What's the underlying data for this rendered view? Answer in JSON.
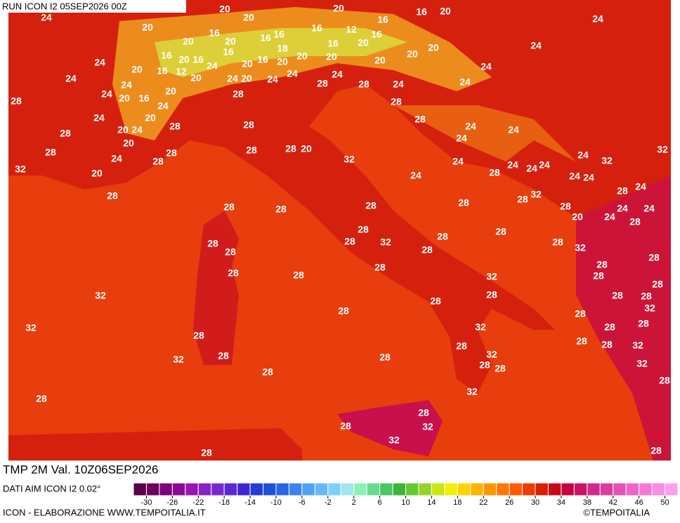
{
  "header": {
    "run": "RUN ICON I2 05SEP2026 00Z"
  },
  "map": {
    "labels": [
      24,
      20,
      20,
      20,
      16,
      16,
      20,
      24,
      20,
      16,
      16,
      16,
      16,
      12,
      16,
      20,
      20,
      16,
      20,
      20,
      20,
      24,
      16,
      20,
      16,
      16,
      18,
      24,
      20,
      16,
      12,
      24,
      20,
      16,
      20,
      20,
      20,
      20,
      24,
      24,
      24,
      20,
      24,
      20,
      24,
      24,
      24,
      28,
      28,
      24,
      24,
      24,
      20,
      16,
      20,
      28,
      28,
      24,
      28,
      24,
      20,
      28,
      28,
      28,
      20,
      24,
      24,
      24,
      28,
      20,
      24,
      32,
      28,
      28,
      28,
      20,
      28,
      24,
      28,
      32,
      24,
      24,
      32,
      32,
      20,
      24,
      24,
      24,
      28,
      24,
      24,
      24,
      24,
      28,
      28,
      32,
      28,
      28,
      28,
      28,
      28,
      28,
      24,
      24,
      20,
      24,
      28,
      28,
      28,
      28,
      28,
      28,
      28,
      32,
      32,
      28,
      28,
      28,
      28,
      28,
      28,
      28,
      32,
      28,
      28,
      32,
      28,
      28,
      28,
      28,
      32,
      28,
      28,
      28,
      32,
      32,
      28,
      28,
      28,
      28,
      28,
      32,
      32,
      28,
      28,
      32,
      28,
      28,
      32,
      28,
      28,
      28,
      32,
      28,
      28,
      32,
      32,
      28,
      28
    ]
  },
  "footer": {
    "field": "TMP 2M Val. 10Z06SEP2026",
    "source": "DATI AIM ICON I2 0.02°",
    "credit": "ICON - ELABORAZIONE WWW.TEMPOITALIA.IT",
    "copyright": "©TEMPOITALIA"
  },
  "colorbar": {
    "lim": [
      -32,
      52
    ],
    "ticks": [
      -30,
      -26,
      -22,
      -18,
      -14,
      -10,
      -6,
      -2,
      2,
      6,
      10,
      14,
      18,
      22,
      26,
      30,
      34,
      38,
      42,
      46,
      50
    ],
    "colors": [
      "#5a0046",
      "#6e0060",
      "#7d007a",
      "#8c0a96",
      "#9a14b4",
      "#8c1ec8",
      "#7828d2",
      "#5a28d2",
      "#3c28d2",
      "#283cd2",
      "#1e50dc",
      "#2864e6",
      "#3c82f0",
      "#50a0f5",
      "#64b9fa",
      "#78d2fa",
      "#a0e6f0",
      "#8cf0b4",
      "#64dc8c",
      "#46c864",
      "#3cb43c",
      "#64c832",
      "#96d228",
      "#c8e614",
      "#f0f000",
      "#ffd200",
      "#ffb400",
      "#ff9600",
      "#ff7800",
      "#ff5a00",
      "#f03c00",
      "#dc1e00",
      "#c80a14",
      "#c8003c",
      "#c81464",
      "#d2288c",
      "#dc3ca0",
      "#e650b4",
      "#f064c8",
      "#f578d7",
      "#fa8ce6",
      "#ff9ff0"
    ]
  }
}
